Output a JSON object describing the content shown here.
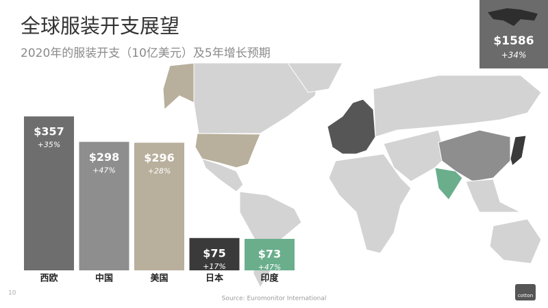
{
  "chart_data": {
    "type": "bar",
    "title": "全球服装开支展望",
    "subtitle": "2020年的服装开支（10亿美元）及5年增长预期",
    "categories": [
      "西欧",
      "中国",
      "美国",
      "日本",
      "印度"
    ],
    "values": [
      357,
      298,
      296,
      75,
      73
    ],
    "value_labels": [
      "$357",
      "$298",
      "$296",
      "$75",
      "$73"
    ],
    "growth_labels": [
      "+35%",
      "+47%",
      "+28%",
      "+17%",
      "+47%"
    ],
    "colors": [
      "#6e6e6e",
      "#8e8e8e",
      "#b8af9c",
      "#3a3a3a",
      "#6aae8c"
    ],
    "world_total": "$1586",
    "world_growth": "+34%",
    "source": "Source: Euromonitor International",
    "page_number": "10",
    "logo": "cotton"
  }
}
